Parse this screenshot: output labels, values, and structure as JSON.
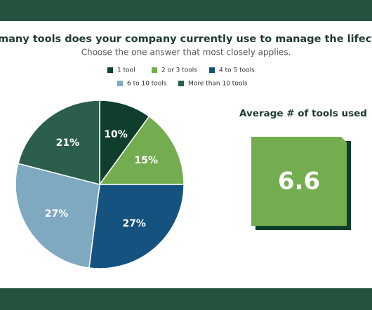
{
  "chart_data": {
    "type": "pie",
    "title": "many tools does your company currently use to manage the lifecycle of a client’s matt",
    "subtitle": "Choose the one answer that most closely applies.",
    "series": [
      {
        "name": "1 tool",
        "color": "#0f3e2c"
      },
      {
        "name": "2 or 3 tools",
        "color": "#74ad4f"
      },
      {
        "name": "4 to 5 tools",
        "color": "#16527f"
      },
      {
        "name": "6 to 10 tools",
        "color": "#7fa8c1"
      },
      {
        "name": "More than 10 tools",
        "color": "#2b5e4b"
      }
    ],
    "values": [
      10,
      15,
      27,
      27,
      21
    ],
    "value_labels": [
      "10%",
      "15%",
      "27%",
      "27%",
      "21%"
    ],
    "callout": {
      "label": "Average # of tools used",
      "value": 6.6,
      "color": "#74ad4f"
    }
  }
}
